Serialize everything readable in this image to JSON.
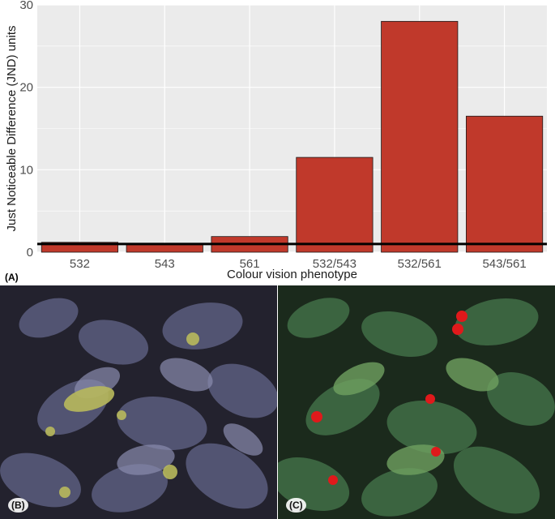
{
  "panel_a_label": "(A)",
  "panel_b_label": "(B)",
  "panel_c_label": "(C)",
  "colors": {
    "bar_fill": "#c0392b",
    "bar_stroke": "#1a1a1a",
    "panel_bg": "#ebebeb",
    "grid": "#ffffff",
    "reference_line": "#000000"
  },
  "chart_data": {
    "type": "bar",
    "categories": [
      "532",
      "543",
      "561",
      "532/543",
      "532/561",
      "543/561"
    ],
    "values": [
      1.2,
      0.9,
      1.9,
      11.5,
      28.0,
      16.5
    ],
    "xlabel": "Colour vision phenotype",
    "ylabel": "Just Noticeable Difference (JND) units",
    "ylim": [
      0,
      30
    ],
    "yticks": [
      0,
      10,
      20,
      30
    ],
    "reference_line_y": 1,
    "grid": true
  }
}
